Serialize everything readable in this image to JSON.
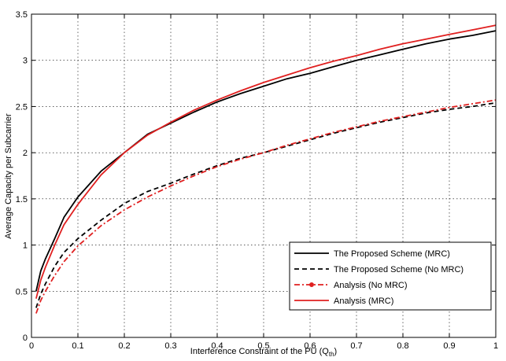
{
  "chart_data": {
    "type": "line",
    "title": "",
    "xlabel": "Interference Constraint of the PU (Q",
    "xlabel_sub": "th",
    "xlabel_end": ")",
    "ylabel": "Average Capacity per Subcarrier",
    "xlim": [
      0,
      1
    ],
    "ylim": [
      0,
      3.5
    ],
    "xticks": [
      0,
      0.1,
      0.2,
      0.3,
      0.4,
      0.5,
      0.6,
      0.7,
      0.8,
      0.9,
      1
    ],
    "xtick_labels": [
      "0",
      "0.1",
      "0.2",
      "0.3",
      "0.4",
      "0.5",
      "0.6",
      "0.7",
      "0.8",
      "0.9",
      "1"
    ],
    "yticks": [
      0,
      0.5,
      1,
      1.5,
      2,
      2.5,
      3,
      3.5
    ],
    "ytick_labels": [
      "0",
      "0.5",
      "1",
      "1.5",
      "2",
      "2.5",
      "3",
      "3.5"
    ],
    "grid": true,
    "legend_position": "bottom-right",
    "x": [
      0.01,
      0.02,
      0.03,
      0.05,
      0.07,
      0.1,
      0.15,
      0.2,
      0.25,
      0.3,
      0.35,
      0.4,
      0.45,
      0.5,
      0.55,
      0.6,
      0.65,
      0.7,
      0.75,
      0.8,
      0.85,
      0.9,
      0.95,
      1.0
    ],
    "series": [
      {
        "name": "The Proposed Scheme (MRC)",
        "color": "#000000",
        "dash": "solid",
        "values": [
          0.5,
          0.72,
          0.85,
          1.07,
          1.3,
          1.52,
          1.8,
          2.0,
          2.2,
          2.32,
          2.44,
          2.55,
          2.64,
          2.72,
          2.8,
          2.86,
          2.93,
          3.0,
          3.06,
          3.12,
          3.18,
          3.23,
          3.27,
          3.32
        ]
      },
      {
        "name": "The Proposed Scheme (No MRC)",
        "color": "#000000",
        "dash": "dashed",
        "values": [
          0.32,
          0.47,
          0.58,
          0.77,
          0.92,
          1.07,
          1.27,
          1.45,
          1.58,
          1.67,
          1.77,
          1.86,
          1.94,
          2.0,
          2.07,
          2.14,
          2.21,
          2.27,
          2.33,
          2.38,
          2.43,
          2.47,
          2.5,
          2.54
        ]
      },
      {
        "name": "Analysis (No MRC)",
        "color": "#e02020",
        "dash": "dashdot",
        "marker": true,
        "values": [
          0.26,
          0.4,
          0.5,
          0.67,
          0.82,
          0.99,
          1.21,
          1.38,
          1.52,
          1.64,
          1.75,
          1.85,
          1.93,
          2.0,
          2.08,
          2.15,
          2.22,
          2.28,
          2.34,
          2.39,
          2.44,
          2.49,
          2.53,
          2.57
        ]
      },
      {
        "name": "Analysis (MRC)",
        "color": "#e02020",
        "dash": "solid",
        "values": [
          0.42,
          0.62,
          0.76,
          1.0,
          1.22,
          1.44,
          1.76,
          2.0,
          2.19,
          2.33,
          2.46,
          2.57,
          2.67,
          2.76,
          2.84,
          2.92,
          2.99,
          3.05,
          3.12,
          3.18,
          3.23,
          3.28,
          3.33,
          3.38
        ]
      }
    ]
  }
}
